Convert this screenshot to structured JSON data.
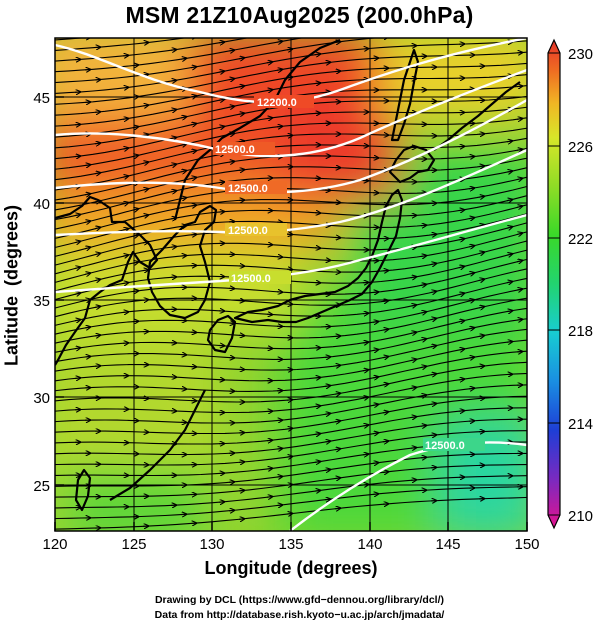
{
  "title": "MSM 21Z10Aug2025 (200.0hPa)",
  "credits": {
    "line1": "Drawing by DCL (https://www.gfd−dennou.org/library/dcl/)",
    "line2": "Data from http://database.rish.kyoto−u.ac.jp/arch/jmadata/"
  },
  "map": {
    "x_label": "Longitude (degrees)",
    "y_label": "Latitude  (degrees)",
    "lon_range": [
      120,
      150
    ],
    "lat_range": [
      22.5,
      47.6
    ],
    "x_ticks": [
      "120",
      "125",
      "130",
      "135",
      "140",
      "145",
      "150"
    ],
    "y_ticks": [
      "25",
      "30",
      "35",
      "40",
      "45"
    ],
    "gridlines": true,
    "field": "temperature shading with streamlines and geopotential height contours",
    "contour_labels": [
      "12200.0",
      "12500.0",
      "12500.0",
      "12500.0",
      "12500.0",
      "12500.0"
    ]
  },
  "colorbar": {
    "ticks": [
      "230",
      "226",
      "222",
      "218",
      "214",
      "210"
    ],
    "min": 210,
    "max": 230,
    "colors": [
      "#e4128e",
      "#7a2ac0",
      "#1e3ed6",
      "#1a8ee2",
      "#18ccd2",
      "#22d470",
      "#3ad829",
      "#8fdc26",
      "#d8e629",
      "#f0b624",
      "#ef6a22",
      "#e5332b"
    ]
  }
}
